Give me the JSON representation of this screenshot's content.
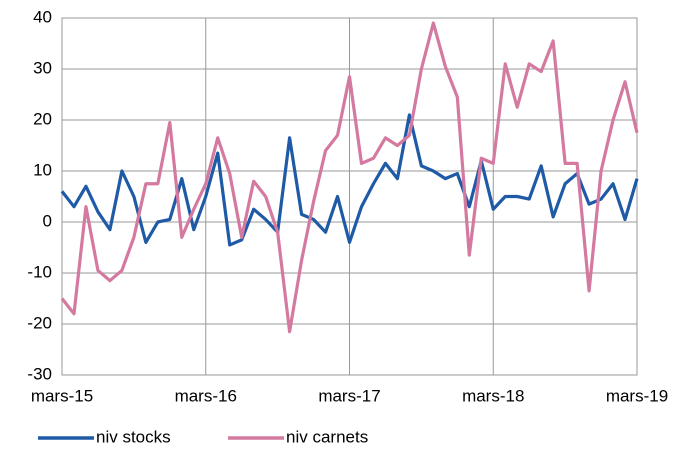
{
  "chart_data": {
    "type": "line",
    "categories": [
      "mars-15",
      null,
      null,
      null,
      null,
      null,
      null,
      null,
      null,
      null,
      null,
      null,
      "mars-16",
      null,
      null,
      null,
      null,
      null,
      null,
      null,
      null,
      null,
      null,
      null,
      "mars-17",
      null,
      null,
      null,
      null,
      null,
      null,
      null,
      null,
      null,
      null,
      null,
      "mars-18",
      null,
      null,
      null,
      null,
      null,
      null,
      null,
      null,
      null,
      null,
      null,
      "mars-19"
    ],
    "series": [
      {
        "name": "niv stocks",
        "color": "#1f5aa6",
        "values": [
          6,
          3,
          7,
          2,
          -1.5,
          10,
          5,
          -4,
          0,
          0.5,
          8.5,
          -1.5,
          5,
          13.5,
          -4.5,
          -3.5,
          2.5,
          0.5,
          -2,
          16.5,
          1.5,
          0.5,
          -2,
          5,
          -4,
          3,
          7.5,
          11.5,
          8.5,
          21,
          11,
          10,
          8.5,
          9.5,
          3,
          12,
          2.5,
          5,
          5,
          4.5,
          11,
          1,
          7.5,
          9.5,
          3.5,
          4.5,
          7.5,
          0.5,
          8.5
        ]
      },
      {
        "name": "niv carnets",
        "color": "#d4799f",
        "values": [
          -15,
          -18,
          3,
          -9.5,
          -11.5,
          -9.5,
          -3,
          7.5,
          7.5,
          19.5,
          -3,
          2.5,
          7.5,
          16.5,
          9.5,
          -3,
          8,
          5,
          -2,
          -21.5,
          -7.5,
          4,
          14,
          17,
          28.5,
          11.5,
          12.5,
          16.5,
          15,
          17,
          30,
          39,
          30.5,
          24.5,
          -6.5,
          12.5,
          11.5,
          31,
          22.5,
          31,
          29.5,
          35.5,
          11.5,
          11.5,
          -13.5,
          10,
          20,
          27.5,
          17.5
        ]
      }
    ],
    "ylim": [
      -30,
      40
    ],
    "yticks": [
      -30,
      -20,
      -10,
      0,
      10,
      20,
      30,
      40
    ],
    "grid": true,
    "legend": "bottom"
  }
}
